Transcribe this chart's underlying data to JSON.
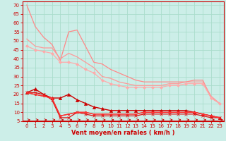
{
  "xlabel": "Vent moyen/en rafales ( km/h )",
  "background_color": "#cceee8",
  "grid_color": "#aaddcc",
  "xlim": [
    -0.5,
    23.5
  ],
  "ylim": [
    5,
    72
  ],
  "yticks": [
    5,
    10,
    15,
    20,
    25,
    30,
    35,
    40,
    45,
    50,
    55,
    60,
    65,
    70
  ],
  "xticks": [
    0,
    1,
    2,
    3,
    4,
    5,
    6,
    7,
    8,
    9,
    10,
    11,
    12,
    13,
    14,
    15,
    16,
    17,
    18,
    19,
    20,
    21,
    22,
    23
  ],
  "lines": [
    {
      "x": [
        0,
        1,
        2,
        3,
        4,
        5,
        6,
        7,
        8,
        9,
        10,
        11,
        12,
        13,
        14,
        15,
        16,
        17,
        18,
        19,
        20,
        21,
        22,
        23
      ],
      "y": [
        70,
        58,
        52,
        48,
        39,
        55,
        56,
        47,
        38,
        37,
        34,
        32,
        30,
        28,
        27,
        27,
        27,
        27,
        27,
        27,
        28,
        28,
        18,
        15
      ],
      "color": "#ff8888",
      "lw": 0.9,
      "marker": null
    },
    {
      "x": [
        0,
        1,
        2,
        3,
        4,
        5,
        6,
        7,
        8,
        9,
        10,
        11,
        12,
        13,
        14,
        15,
        16,
        17,
        18,
        19,
        20,
        21,
        22,
        23
      ],
      "y": [
        51,
        47,
        46,
        46,
        40,
        43,
        41,
        38,
        35,
        30,
        29,
        27,
        26,
        25,
        25,
        25,
        25,
        26,
        26,
        27,
        27,
        27,
        19,
        15
      ],
      "color": "#ff9999",
      "lw": 0.9,
      "marker": null
    },
    {
      "x": [
        0,
        1,
        2,
        3,
        4,
        5,
        6,
        7,
        8,
        9,
        10,
        11,
        12,
        13,
        14,
        15,
        16,
        17,
        18,
        19,
        20,
        21,
        22,
        23
      ],
      "y": [
        47,
        45,
        44,
        43,
        38,
        38,
        37,
        34,
        32,
        28,
        26,
        25,
        24,
        24,
        24,
        24,
        24,
        25,
        25,
        26,
        26,
        26,
        18,
        15
      ],
      "color": "#ffaaaa",
      "lw": 0.9,
      "marker": "D",
      "ms": 2.0
    },
    {
      "x": [
        0,
        1,
        2,
        3,
        4,
        5,
        6,
        7,
        8,
        9,
        10,
        11,
        12,
        13,
        14,
        15,
        16,
        17,
        18,
        19,
        20,
        21,
        22,
        23
      ],
      "y": [
        21,
        23,
        20,
        18,
        18,
        20,
        17,
        15,
        13,
        12,
        11,
        11,
        11,
        11,
        11,
        11,
        11,
        11,
        11,
        11,
        10,
        9,
        8,
        7
      ],
      "color": "#cc0000",
      "lw": 1.0,
      "marker": "^",
      "ms": 3.0
    },
    {
      "x": [
        0,
        1,
        2,
        3,
        4,
        5,
        6,
        7,
        8,
        9,
        10,
        11,
        12,
        13,
        14,
        15,
        16,
        17,
        18,
        19,
        20,
        21,
        22,
        23
      ],
      "y": [
        21,
        21,
        20,
        17,
        7,
        7,
        10,
        9,
        8,
        8,
        8,
        8,
        8,
        8,
        9,
        9,
        9,
        9,
        9,
        9,
        9,
        8,
        7,
        7
      ],
      "color": "#dd1111",
      "lw": 0.9,
      "marker": "x",
      "ms": 3.0
    },
    {
      "x": [
        0,
        1,
        2,
        3,
        4,
        5,
        6,
        7,
        8,
        9,
        10,
        11,
        12,
        13,
        14,
        15,
        16,
        17,
        18,
        19,
        20,
        21,
        22,
        23
      ],
      "y": [
        21,
        20,
        19,
        18,
        8,
        9,
        10,
        10,
        9,
        9,
        9,
        9,
        9,
        9,
        10,
        10,
        10,
        10,
        10,
        10,
        10,
        9,
        8,
        7
      ],
      "color": "#ee2222",
      "lw": 0.9,
      "marker": "s",
      "ms": 2.0
    },
    {
      "x": [
        0,
        1,
        2,
        3,
        4,
        5,
        6,
        7,
        8,
        9,
        10,
        11,
        12,
        13,
        14,
        15,
        16,
        17,
        18,
        19,
        20,
        21,
        22,
        23
      ],
      "y": [
        21,
        20,
        19,
        18,
        8,
        9,
        10,
        10,
        9,
        9,
        9,
        9,
        9,
        9,
        10,
        10,
        10,
        10,
        10,
        10,
        10,
        9,
        8,
        7
      ],
      "color": "#ff3333",
      "lw": 0.9,
      "marker": null
    }
  ],
  "arrow_color": "#cc0000",
  "axis_color": "#cc0000",
  "tick_color": "#cc0000",
  "tick_fontsize": 5,
  "xlabel_fontsize": 6,
  "xlabel_color": "#cc0000"
}
